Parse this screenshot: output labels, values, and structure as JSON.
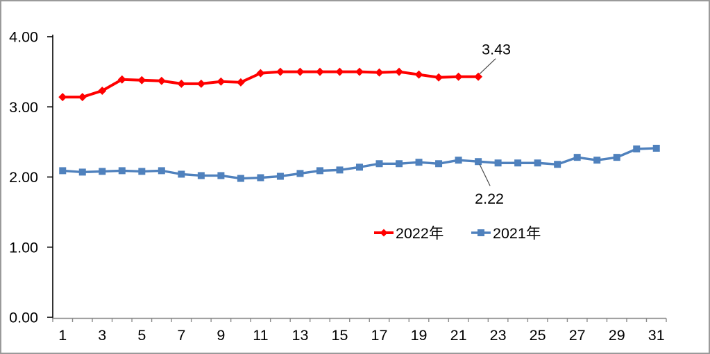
{
  "chart_data": {
    "type": "line",
    "title": "",
    "xlabel": "",
    "ylabel": "",
    "x": [
      1,
      2,
      3,
      4,
      5,
      6,
      7,
      8,
      9,
      10,
      11,
      12,
      13,
      14,
      15,
      16,
      17,
      18,
      19,
      20,
      21,
      22,
      23,
      24,
      25,
      26,
      27,
      28,
      29,
      30,
      31
    ],
    "x_tick_labels": [
      "1",
      "3",
      "5",
      "7",
      "9",
      "11",
      "13",
      "15",
      "17",
      "19",
      "21",
      "23",
      "25",
      "27",
      "29",
      "31"
    ],
    "y_ticks": [
      {
        "value": 0,
        "label": "0.00"
      },
      {
        "value": 1,
        "label": "1.00"
      },
      {
        "value": 2,
        "label": "2.00"
      },
      {
        "value": 3,
        "label": "3.00"
      },
      {
        "value": 4,
        "label": "4.00"
      }
    ],
    "ylim": [
      0,
      4
    ],
    "grid": false,
    "series": [
      {
        "name": "2022年",
        "color": "#ff0000",
        "marker": "diamond",
        "values": [
          3.14,
          3.14,
          3.23,
          3.39,
          3.38,
          3.37,
          3.33,
          3.33,
          3.36,
          3.35,
          3.48,
          3.5,
          3.5,
          3.5,
          3.5,
          3.5,
          3.49,
          3.5,
          3.46,
          3.42,
          3.43,
          3.43
        ]
      },
      {
        "name": "2021年",
        "color": "#4f81bd",
        "marker": "square",
        "values": [
          2.09,
          2.07,
          2.08,
          2.09,
          2.08,
          2.09,
          2.04,
          2.02,
          2.02,
          1.98,
          1.99,
          2.01,
          2.05,
          2.09,
          2.1,
          2.14,
          2.19,
          2.19,
          2.21,
          2.19,
          2.24,
          2.22,
          2.2,
          2.2,
          2.2,
          2.18,
          2.28,
          2.24,
          2.28,
          2.4,
          2.41
        ]
      }
    ],
    "annotations": [
      {
        "text": "3.43",
        "series": "2022年",
        "x": 22,
        "value": 3.43
      },
      {
        "text": "2.22",
        "series": "2021年",
        "x": 22,
        "value": 2.22
      }
    ],
    "legend": {
      "position": "inside-bottom-center",
      "items": [
        {
          "label": "2022年",
          "color": "#ff0000",
          "marker": "diamond"
        },
        {
          "label": "2021年",
          "color": "#4f81bd",
          "marker": "square"
        }
      ]
    },
    "colors": {
      "y_axis": "#000000",
      "x_axis": "#8c8c8c",
      "tick_text": "#000000",
      "annotation_leader": "#4a4a4a",
      "frame_border": "#9a9a9a",
      "background": "#ffffff"
    }
  }
}
